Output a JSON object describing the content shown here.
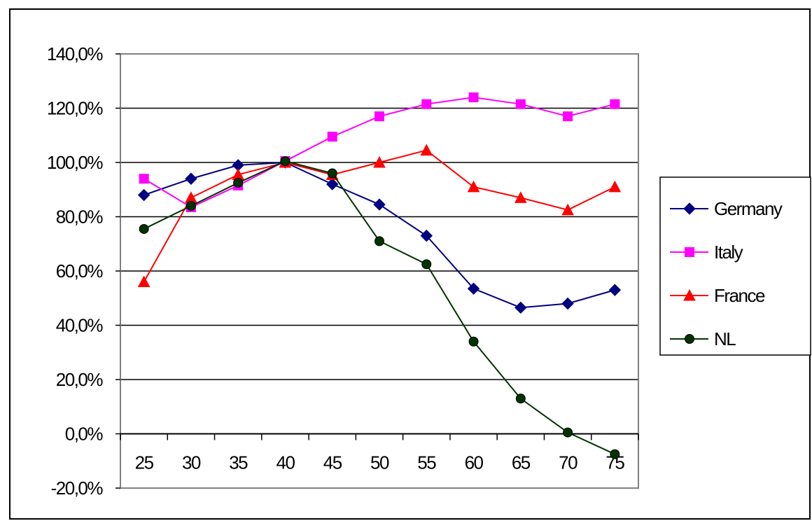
{
  "chart_data": {
    "type": "line",
    "title": "",
    "xlabel": "",
    "ylabel": "",
    "categories": [
      "25",
      "30",
      "35",
      "40",
      "45",
      "50",
      "55",
      "60",
      "65",
      "70",
      "75"
    ],
    "y_ticks": [
      "140,0%",
      "120,0%",
      "100,0%",
      "80,0%",
      "60,0%",
      "40,0%",
      "20,0%",
      "0,0%",
      "-20,0%"
    ],
    "ylim": [
      -20,
      140
    ],
    "y_unit": "%",
    "grid": "horizontal major gridlines",
    "legend_position": "right",
    "series": [
      {
        "name": "Germany",
        "color": "#000080",
        "marker": "diamond",
        "values": [
          88,
          94,
          99,
          100,
          92,
          84.5,
          73,
          53.5,
          46.5,
          48,
          53
        ]
      },
      {
        "name": "Italy",
        "color": "#ff00ff",
        "marker": "square",
        "values": [
          94,
          83.5,
          91.5,
          100.5,
          109.5,
          117,
          121.5,
          124,
          121.5,
          117,
          121.5
        ]
      },
      {
        "name": "France",
        "color": "#ff0000",
        "marker": "triangle",
        "values": [
          56,
          87,
          95.5,
          100,
          95.5,
          100,
          104.5,
          91,
          87,
          82.5,
          91
        ]
      },
      {
        "name": "NL",
        "color": "#003300",
        "marker": "circle",
        "values": [
          75.5,
          84,
          92.5,
          100.5,
          96,
          71,
          62.5,
          34,
          13,
          0.5,
          -7.5
        ]
      }
    ]
  }
}
